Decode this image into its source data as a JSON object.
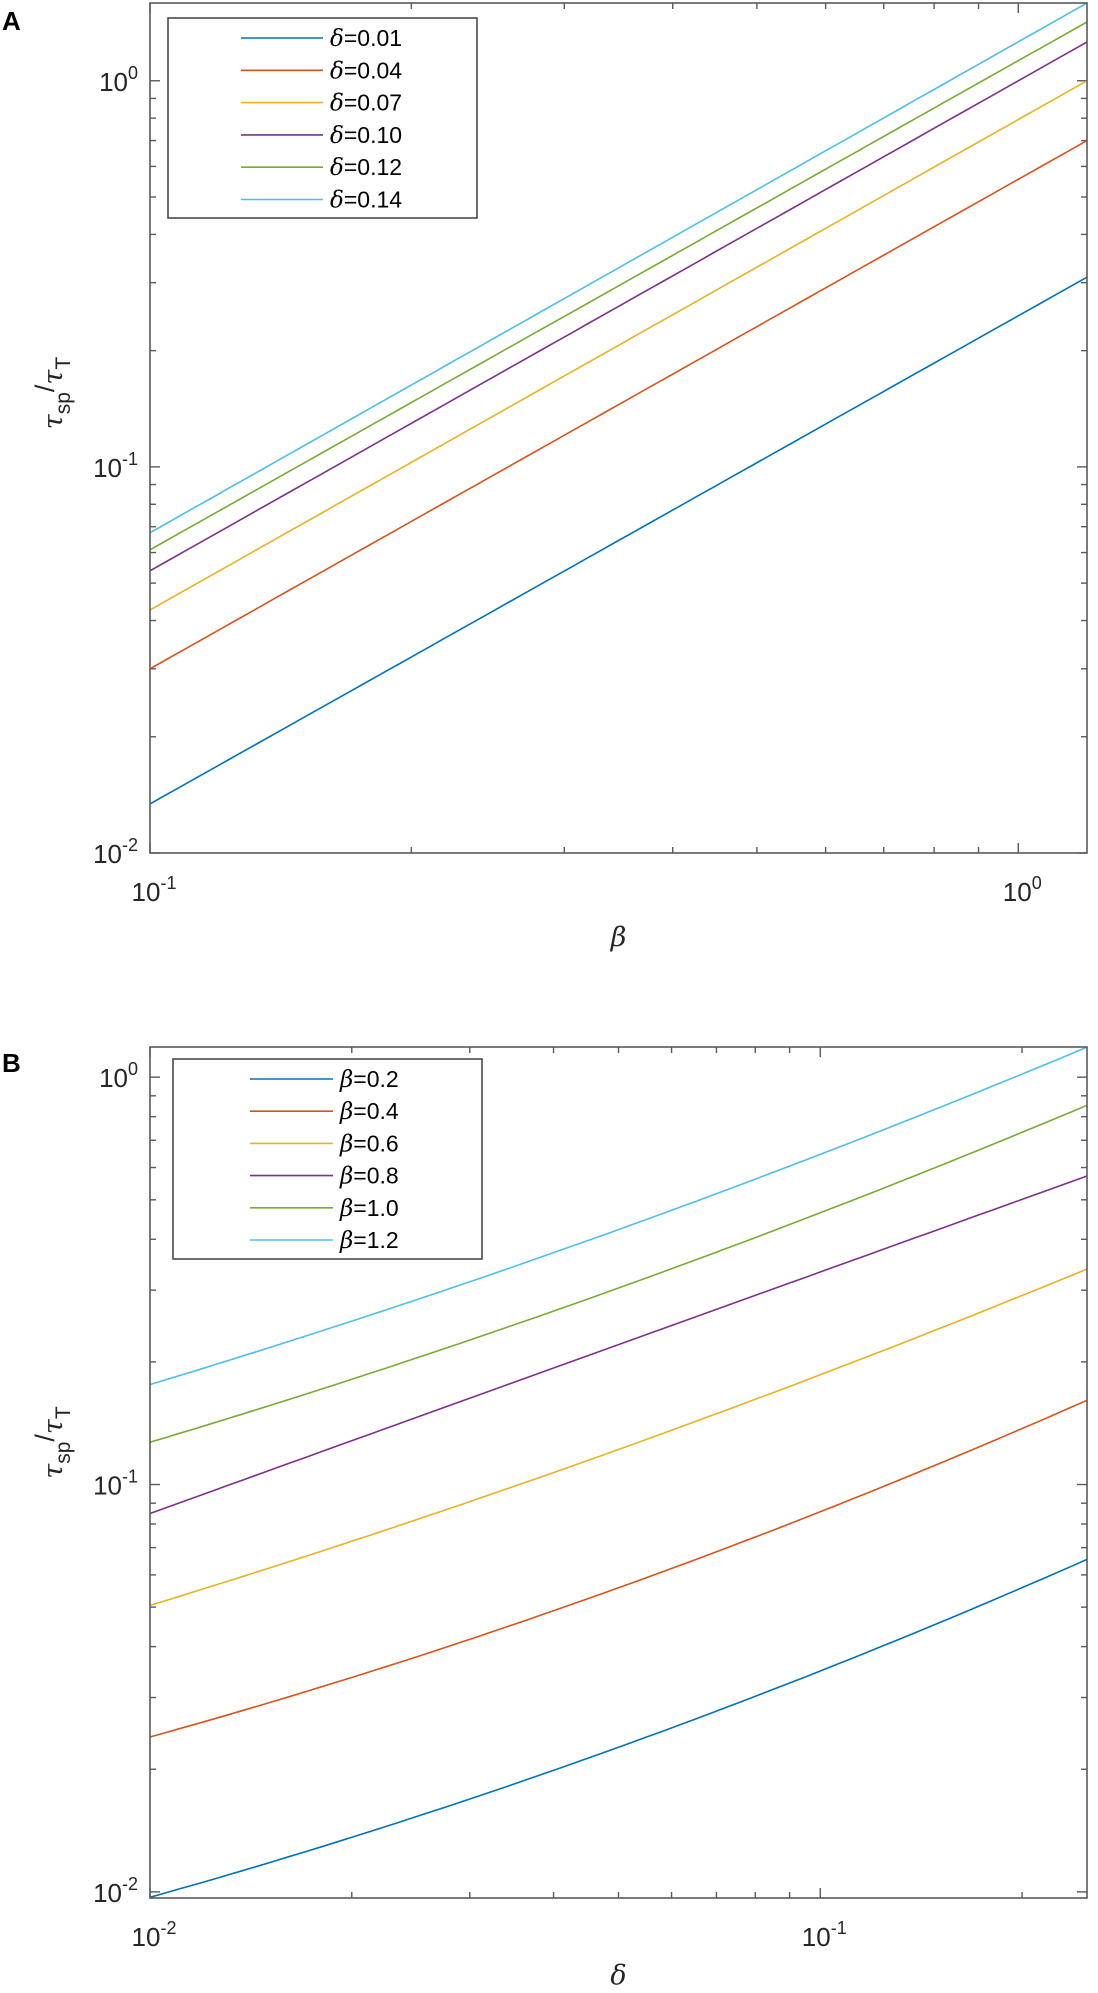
{
  "chart_data": [
    {
      "panel_label": "A",
      "type": "line",
      "scale": "loglog",
      "xlabel": "β",
      "ylabel_parts": [
        "τ",
        "sp",
        "/",
        "τ",
        "T"
      ],
      "xlim": [
        0.1,
        1.2
      ],
      "ylim": [
        0.01,
        1.59
      ],
      "xticks": [
        {
          "value": 0.1,
          "base": "10",
          "exp": "-1"
        },
        {
          "value": 1,
          "base": "10",
          "exp": "0"
        }
      ],
      "yticks": [
        {
          "value": 0.01,
          "base": "10",
          "exp": "-2"
        },
        {
          "value": 0.1,
          "base": "10",
          "exp": "-1"
        },
        {
          "value": 1,
          "base": "10",
          "exp": "0"
        }
      ],
      "legend_position": "top-left",
      "legend_symbol": "δ",
      "x": [
        0.1,
        1.2
      ],
      "series": [
        {
          "name": "δ=0.01",
          "symbol": "δ",
          "value": "=0.01",
          "color": "#0072BD",
          "values": [
            0.0134,
            0.31
          ]
        },
        {
          "name": "δ=0.04",
          "symbol": "δ",
          "value": "=0.04",
          "color": "#D95319",
          "values": [
            0.03,
            0.7
          ]
        },
        {
          "name": "δ=0.07",
          "symbol": "δ",
          "value": "=0.07",
          "color": "#EDB120",
          "values": [
            0.0426,
            1.0
          ]
        },
        {
          "name": "δ=0.10",
          "symbol": "δ",
          "value": "=0.10",
          "color": "#7E2F8E",
          "values": [
            0.0538,
            1.26
          ]
        },
        {
          "name": "δ=0.12",
          "symbol": "δ",
          "value": "=0.12",
          "color": "#77AC30",
          "values": [
            0.061,
            1.42
          ]
        },
        {
          "name": "δ=0.14",
          "symbol": "δ",
          "value": "=0.14",
          "color": "#4DBEEE",
          "values": [
            0.0675,
            1.59
          ]
        }
      ]
    },
    {
      "panel_label": "B",
      "type": "line",
      "scale": "loglog",
      "xlabel": "δ",
      "ylabel_parts": [
        "τ",
        "sp",
        "/",
        "τ",
        "T"
      ],
      "xlim": [
        0.01,
        0.25
      ],
      "ylim": [
        0.00966,
        1.186
      ],
      "xticks": [
        {
          "value": 0.01,
          "base": "10",
          "exp": "-2"
        },
        {
          "value": 0.1,
          "base": "10",
          "exp": "-1"
        }
      ],
      "yticks": [
        {
          "value": 0.01,
          "base": "10",
          "exp": "-2"
        },
        {
          "value": 0.1,
          "base": "10",
          "exp": "-1"
        },
        {
          "value": 1,
          "base": "10",
          "exp": "0"
        }
      ],
      "legend_position": "top-left",
      "x": [
        0.01,
        0.0316,
        0.25
      ],
      "series": [
        {
          "name": "β=0.2",
          "symbol": "β",
          "value": "=0.2",
          "color": "#0072BD",
          "values": [
            0.0097,
            0.0174,
            0.0655
          ]
        },
        {
          "name": "β=0.4",
          "symbol": "β",
          "value": "=0.4",
          "color": "#D95319",
          "values": [
            0.024,
            0.0429,
            0.161
          ]
        },
        {
          "name": "β=0.6",
          "symbol": "β",
          "value": "=0.6",
          "color": "#EDB120",
          "values": [
            0.0505,
            0.0935,
            0.338
          ]
        },
        {
          "name": "β=0.8",
          "symbol": "β",
          "value": "=0.8",
          "color": "#7E2F8E",
          "values": [
            0.0849,
            0.168,
            0.572
          ]
        },
        {
          "name": "β=1.0",
          "symbol": "β",
          "value": "=1.0",
          "color": "#77AC30",
          "values": [
            0.127,
            0.233,
            0.853
          ]
        },
        {
          "name": "β=1.2",
          "symbol": "β",
          "value": "=1.2",
          "color": "#4DBEEE",
          "values": [
            0.176,
            0.324,
            1.185
          ]
        }
      ]
    }
  ]
}
